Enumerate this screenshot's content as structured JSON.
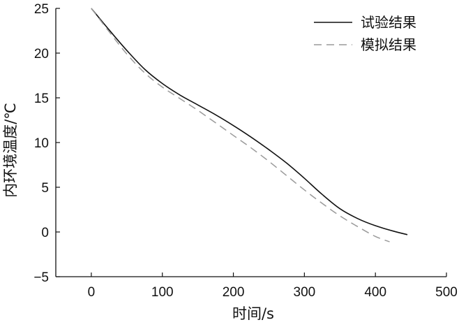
{
  "chart_data": {
    "type": "line",
    "title": "",
    "xlabel": "时间/s",
    "ylabel": "内环境温度/℃",
    "xlim": [
      -50,
      500
    ],
    "ylim": [
      -5,
      25
    ],
    "xticks": [
      0,
      100,
      200,
      300,
      400,
      500
    ],
    "yticks": [
      -5,
      0,
      5,
      10,
      15,
      20,
      25
    ],
    "xtick_labels": [
      "0",
      "100",
      "200",
      "300",
      "400",
      "500"
    ],
    "ytick_labels": [
      "−5",
      "0",
      "5",
      "10",
      "15",
      "20",
      "25"
    ],
    "grid": false,
    "legend_position": "top-right",
    "series": [
      {
        "name": "试验结果",
        "style": "solid",
        "color": "#111111",
        "x": [
          0,
          25,
          50,
          75,
          100,
          125,
          150,
          175,
          200,
          225,
          250,
          275,
          300,
          325,
          350,
          375,
          400,
          425,
          445
        ],
        "y": [
          25,
          22.6,
          20.3,
          18.2,
          16.6,
          15.3,
          14.2,
          13.1,
          11.9,
          10.6,
          9.2,
          7.7,
          6.0,
          4.2,
          2.6,
          1.5,
          0.7,
          0.1,
          -0.3
        ]
      },
      {
        "name": "模拟结果",
        "style": "dashed",
        "color": "#9a9a9a",
        "x": [
          0,
          25,
          50,
          75,
          100,
          125,
          150,
          175,
          200,
          225,
          250,
          275,
          300,
          325,
          350,
          375,
          400,
          420
        ],
        "y": [
          25,
          22.4,
          19.9,
          17.8,
          16.2,
          14.9,
          13.6,
          12.2,
          10.8,
          9.4,
          7.9,
          6.3,
          4.7,
          3.2,
          1.8,
          0.6,
          -0.5,
          -1.1
        ]
      }
    ]
  }
}
